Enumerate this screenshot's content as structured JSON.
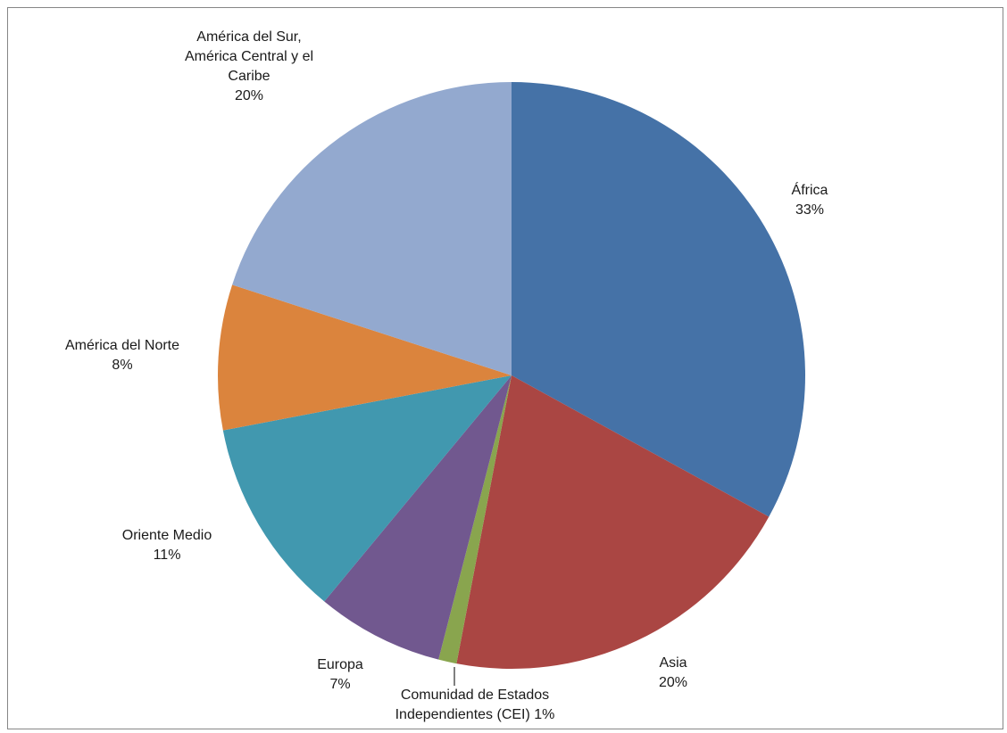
{
  "chart_data": {
    "type": "pie",
    "title": "",
    "slices": [
      {
        "name": "África",
        "value": 33,
        "percent_label": "33%",
        "color": "#4572A7"
      },
      {
        "name": "Asia",
        "value": 20,
        "percent_label": "20%",
        "color": "#AA4643"
      },
      {
        "name": "Comunidad de Estados Independientes (CEI)",
        "value": 1,
        "percent_label": "1%",
        "color": "#89A54E"
      },
      {
        "name": "Europa",
        "value": 7,
        "percent_label": "7%",
        "color": "#71588F"
      },
      {
        "name": "Oriente Medio",
        "value": 11,
        "percent_label": "11%",
        "color": "#4198AF"
      },
      {
        "name": "América del Norte",
        "value": 8,
        "percent_label": "8%",
        "color": "#DB843D"
      },
      {
        "name": "América del Sur, América Central y el Caribe",
        "value": 20,
        "percent_label": "20%",
        "color": "#93A9CF"
      }
    ],
    "labels": {
      "africa": {
        "line1": "África",
        "line2": "33%"
      },
      "asia": {
        "line1": "Asia",
        "line2": "20%"
      },
      "cei": {
        "line1": "Comunidad de Estados",
        "line2": "Independientes (CEI) 1%"
      },
      "europa": {
        "line1": "Europa",
        "line2": "7%"
      },
      "oriente": {
        "line1": "Oriente Medio",
        "line2": "11%"
      },
      "norte": {
        "line1": "América del Norte",
        "line2": "8%"
      },
      "sur": {
        "line1": "América del Sur,",
        "line2": "América Central y el",
        "line3": "Caribe",
        "line4": "20%"
      }
    },
    "legend": "none"
  }
}
